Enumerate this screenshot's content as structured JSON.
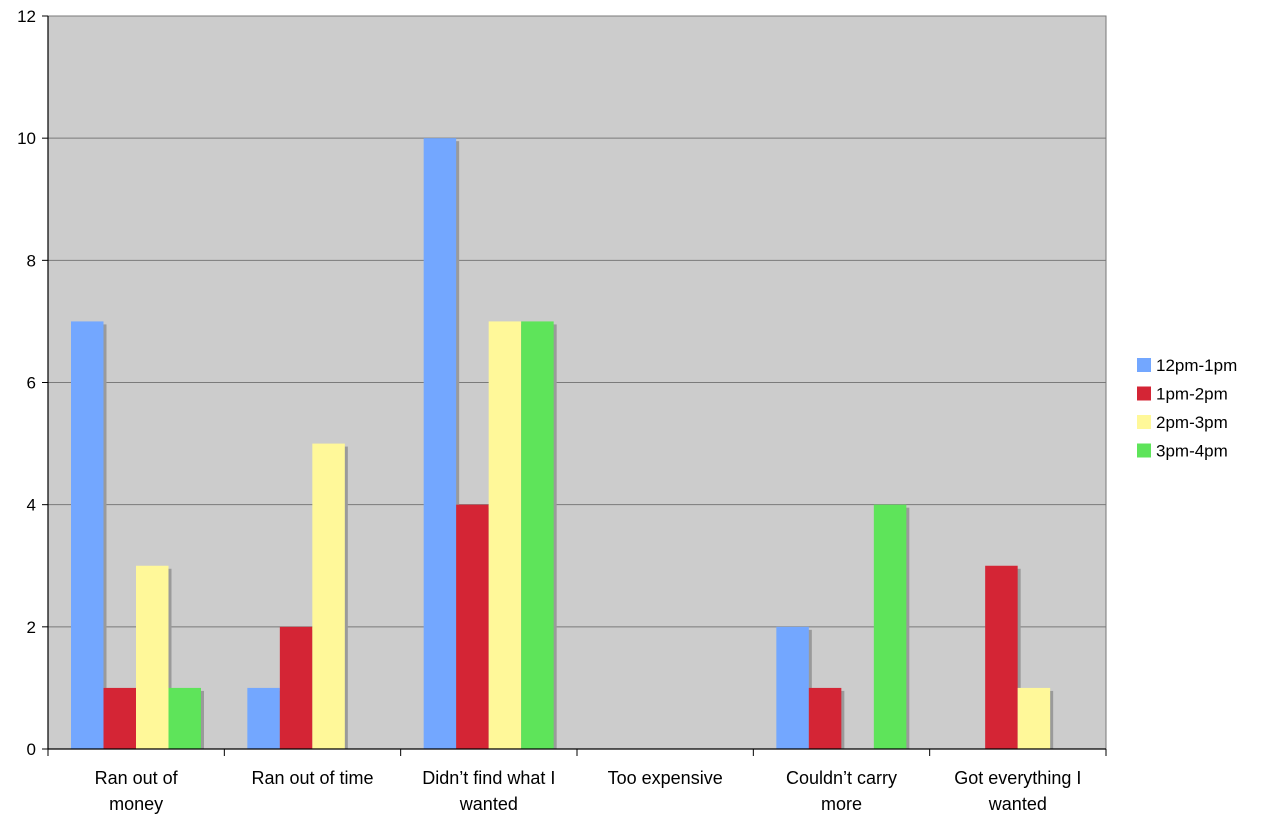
{
  "chart_data": {
    "type": "bar",
    "title": "",
    "xlabel": "",
    "ylabel": "",
    "ylim": [
      0,
      12
    ],
    "yticks": [
      0,
      2,
      4,
      6,
      8,
      10,
      12
    ],
    "grid": true,
    "legend_position": "right",
    "plot_background": "#cccccc",
    "categories": [
      [
        "Ran out of",
        "money"
      ],
      [
        "Ran out of time"
      ],
      [
        "Didn’t find what I",
        "wanted"
      ],
      [
        "Too expensive"
      ],
      [
        "Couldn’t carry",
        "more"
      ],
      [
        "Got everything I",
        "wanted"
      ]
    ],
    "series": [
      {
        "name": "12pm-1pm",
        "color": "#73a7ff",
        "values": [
          7,
          1,
          10,
          0,
          2,
          0
        ]
      },
      {
        "name": "1pm-2pm",
        "color": "#d42535",
        "values": [
          1,
          2,
          4,
          0,
          1,
          3
        ]
      },
      {
        "name": "2pm-3pm",
        "color": "#fff899",
        "values": [
          3,
          5,
          7,
          0,
          0,
          1
        ]
      },
      {
        "name": "3pm-4pm",
        "color": "#5ee45a",
        "values": [
          1,
          0,
          7,
          0,
          4,
          0
        ]
      }
    ]
  }
}
